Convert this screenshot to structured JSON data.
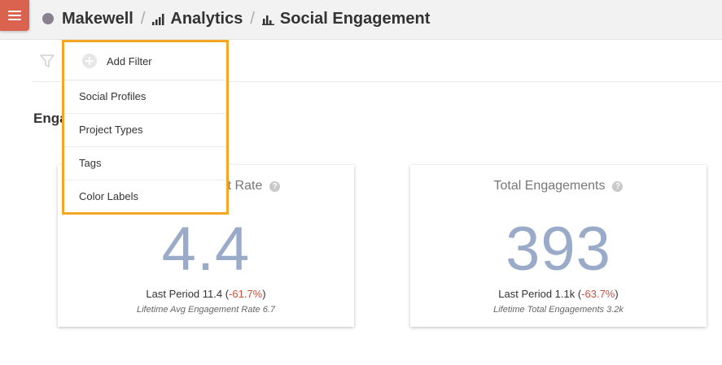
{
  "header": {
    "breadcrumbs": [
      {
        "label": "Makewell"
      },
      {
        "label": "Analytics"
      },
      {
        "label": "Social Engagement"
      }
    ],
    "accent_color": "#d9634e",
    "org_dot_color": "#8a7f8f"
  },
  "section": {
    "title": "Engagement"
  },
  "dropdown": {
    "add_filter_label": "Add Filter",
    "items": [
      "Social Profiles",
      "Project Types",
      "Tags",
      "Color Labels"
    ]
  },
  "cards": [
    {
      "title": "Avg Engagement Rate",
      "value": "4.4",
      "last_period_prefix": "Last Period 11.4 (",
      "last_period_change": "-61.7%",
      "last_period_suffix": ")",
      "lifetime": "Lifetime Avg Engagement Rate 6.7"
    },
    {
      "title": "Total Engagements",
      "value": "393",
      "last_period_prefix": "Last Period 1.1k (",
      "last_period_change": "-63.7%",
      "last_period_suffix": ")",
      "lifetime": "Lifetime Total Engagements 3.2k"
    }
  ]
}
